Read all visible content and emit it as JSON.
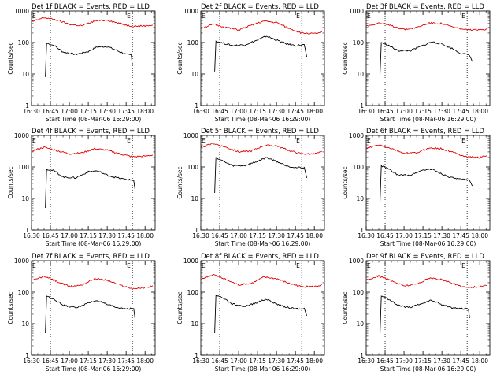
{
  "colors": {
    "events": "#000000",
    "lld": "#e00000",
    "axes": "#000000",
    "background": "#ffffff"
  },
  "xlabel": "Start Time (08-Mar-06 16:29:00)",
  "ylabel": "Counts/sec",
  "x_tick_labels": [
    "16:30",
    "16:45",
    "17:00",
    "17:15",
    "17:30",
    "17:45",
    "18:00"
  ],
  "y_tick_labels": [
    "1",
    "10",
    "100",
    "1000"
  ],
  "marker_label": "E",
  "chart_data": [
    {
      "type": "line",
      "title": "Det 1f BLACK = Events, RED = LLD",
      "xlabel": "Start Time (08-Mar-06 16:29:00)",
      "ylabel": "Counts/sec",
      "yscale": "log",
      "ylim": [
        1,
        1000
      ],
      "x_ticks": [
        "16:30",
        "16:45",
        "17:00",
        "17:15",
        "17:30",
        "17:45",
        "18:00"
      ],
      "vlines": [
        "16:45",
        "17:50"
      ],
      "series": [
        {
          "name": "Events",
          "color": "#000000",
          "x": [
            "16:41",
            "16:42",
            "16:48",
            "16:55",
            "17:05",
            "17:15",
            "17:22",
            "17:30",
            "17:38",
            "17:45",
            "17:49",
            "17:50"
          ],
          "y": [
            8,
            95,
            80,
            50,
            42,
            52,
            72,
            75,
            55,
            42,
            40,
            18
          ]
        },
        {
          "name": "LLD",
          "color": "#e00000",
          "x": [
            "16:30",
            "16:40",
            "16:50",
            "17:00",
            "17:10",
            "17:20",
            "17:30",
            "17:40",
            "17:50",
            "18:00",
            "18:06"
          ],
          "y": [
            450,
            620,
            520,
            380,
            340,
            480,
            520,
            400,
            330,
            340,
            360
          ]
        }
      ]
    },
    {
      "type": "line",
      "title": "Det 2f BLACK = Events, RED = LLD",
      "xlabel": "Start Time (08-Mar-06 16:29:00)",
      "ylabel": "Counts/sec",
      "yscale": "log",
      "ylim": [
        1,
        1000
      ],
      "x_ticks": [
        "16:30",
        "16:45",
        "17:00",
        "17:15",
        "17:30",
        "17:45",
        "18:00"
      ],
      "vlines": [
        "16:45",
        "17:50"
      ],
      "series": [
        {
          "name": "Events",
          "color": "#000000",
          "x": [
            "16:41",
            "16:42",
            "16:48",
            "16:55",
            "17:05",
            "17:15",
            "17:22",
            "17:30",
            "17:38",
            "17:45",
            "17:52",
            "17:54"
          ],
          "y": [
            12,
            110,
            95,
            80,
            85,
            120,
            160,
            120,
            90,
            80,
            85,
            35
          ]
        },
        {
          "name": "LLD",
          "color": "#e00000",
          "x": [
            "16:30",
            "16:40",
            "16:50",
            "17:00",
            "17:10",
            "17:20",
            "17:30",
            "17:40",
            "17:50",
            "18:00",
            "18:06"
          ],
          "y": [
            280,
            380,
            300,
            250,
            350,
            480,
            430,
            280,
            200,
            190,
            210
          ]
        }
      ]
    },
    {
      "type": "line",
      "title": "Det 3f BLACK = Events, RED = LLD",
      "xlabel": "Start Time (08-Mar-06 16:29:00)",
      "ylabel": "Counts/sec",
      "yscale": "log",
      "ylim": [
        1,
        1000
      ],
      "x_ticks": [
        "16:30",
        "16:45",
        "17:00",
        "17:15",
        "17:30",
        "17:45",
        "18:00"
      ],
      "vlines": [
        "16:45",
        "17:50"
      ],
      "series": [
        {
          "name": "Events",
          "color": "#000000",
          "x": [
            "16:41",
            "16:42",
            "16:48",
            "16:55",
            "17:05",
            "17:15",
            "17:22",
            "17:30",
            "17:38",
            "17:45",
            "17:52",
            "17:54"
          ],
          "y": [
            10,
            100,
            80,
            55,
            55,
            80,
            105,
            90,
            65,
            45,
            40,
            25
          ]
        },
        {
          "name": "LLD",
          "color": "#e00000",
          "x": [
            "16:30",
            "16:40",
            "16:50",
            "17:00",
            "17:10",
            "17:20",
            "17:30",
            "17:40",
            "17:50",
            "18:00",
            "18:06"
          ],
          "y": [
            330,
            420,
            340,
            260,
            300,
            420,
            400,
            300,
            250,
            250,
            270
          ]
        }
      ]
    },
    {
      "type": "line",
      "title": "Det 4f BLACK = Events, RED = LLD",
      "xlabel": "Start Time (08-Mar-06 16:29:00)",
      "ylabel": "Counts/sec",
      "yscale": "log",
      "ylim": [
        1,
        1000
      ],
      "x_ticks": [
        "16:30",
        "16:45",
        "17:00",
        "17:15",
        "17:30",
        "17:45",
        "18:00"
      ],
      "vlines": [
        "16:45",
        "17:50"
      ],
      "series": [
        {
          "name": "Events",
          "color": "#000000",
          "x": [
            "16:41",
            "16:42",
            "16:48",
            "16:55",
            "17:05",
            "17:15",
            "17:22",
            "17:30",
            "17:38",
            "17:45",
            "17:51",
            "17:52"
          ],
          "y": [
            5,
            85,
            75,
            48,
            45,
            70,
            75,
            55,
            45,
            40,
            38,
            20
          ]
        },
        {
          "name": "LLD",
          "color": "#e00000",
          "x": [
            "16:30",
            "16:40",
            "16:50",
            "17:00",
            "17:10",
            "17:20",
            "17:30",
            "17:40",
            "17:50",
            "18:00",
            "18:06"
          ],
          "y": [
            320,
            420,
            330,
            260,
            280,
            380,
            340,
            260,
            210,
            220,
            240
          ]
        }
      ]
    },
    {
      "type": "line",
      "title": "Det 5f BLACK = Events, RED = LLD",
      "xlabel": "Start Time (08-Mar-06 16:29:00)",
      "ylabel": "Counts/sec",
      "yscale": "log",
      "ylim": [
        1,
        1000
      ],
      "x_ticks": [
        "16:30",
        "16:45",
        "17:00",
        "17:15",
        "17:30",
        "17:45",
        "18:00"
      ],
      "vlines": [
        "16:45",
        "17:50"
      ],
      "series": [
        {
          "name": "Events",
          "color": "#000000",
          "x": [
            "16:41",
            "16:42",
            "16:48",
            "16:55",
            "17:05",
            "17:15",
            "17:22",
            "17:30",
            "17:38",
            "17:45",
            "17:52",
            "17:54"
          ],
          "y": [
            15,
            200,
            150,
            110,
            110,
            150,
            200,
            150,
            110,
            95,
            95,
            45
          ]
        },
        {
          "name": "LLD",
          "color": "#e00000",
          "x": [
            "16:30",
            "16:40",
            "16:50",
            "17:00",
            "17:10",
            "17:20",
            "17:30",
            "17:40",
            "17:50",
            "18:00",
            "18:06"
          ],
          "y": [
            420,
            560,
            420,
            300,
            320,
            480,
            470,
            330,
            260,
            260,
            300
          ]
        }
      ]
    },
    {
      "type": "line",
      "title": "Det 6f BLACK = Events, RED = LLD",
      "xlabel": "Start Time (08-Mar-06 16:29:00)",
      "ylabel": "Counts/sec",
      "yscale": "log",
      "ylim": [
        1,
        1000
      ],
      "x_ticks": [
        "16:30",
        "16:45",
        "17:00",
        "17:15",
        "17:30",
        "17:45",
        "18:00"
      ],
      "vlines": [
        "16:45",
        "17:50"
      ],
      "series": [
        {
          "name": "Events",
          "color": "#000000",
          "x": [
            "16:41",
            "16:42",
            "16:48",
            "16:55",
            "17:05",
            "17:15",
            "17:22",
            "17:30",
            "17:38",
            "17:45",
            "17:52",
            "17:54"
          ],
          "y": [
            8,
            110,
            85,
            55,
            55,
            80,
            85,
            60,
            45,
            40,
            38,
            25
          ]
        },
        {
          "name": "LLD",
          "color": "#e00000",
          "x": [
            "16:30",
            "16:40",
            "16:50",
            "17:00",
            "17:10",
            "17:20",
            "17:30",
            "17:40",
            "17:50",
            "18:00",
            "18:06"
          ],
          "y": [
            380,
            500,
            380,
            270,
            280,
            400,
            380,
            280,
            210,
            200,
            230
          ]
        }
      ]
    },
    {
      "type": "line",
      "title": "Det 7f BLACK = Events, RED = LLD",
      "xlabel": "Start Time (08-Mar-06 16:29:00)",
      "ylabel": "Counts/sec",
      "yscale": "log",
      "ylim": [
        1,
        1000
      ],
      "x_ticks": [
        "16:30",
        "16:45",
        "17:00",
        "17:15",
        "17:30",
        "17:45",
        "18:00"
      ],
      "vlines": [
        "16:45",
        "17:50"
      ],
      "series": [
        {
          "name": "Events",
          "color": "#000000",
          "x": [
            "16:41",
            "16:42",
            "16:48",
            "16:55",
            "17:05",
            "17:15",
            "17:22",
            "17:30",
            "17:38",
            "17:45",
            "17:51",
            "17:52"
          ],
          "y": [
            5,
            75,
            60,
            38,
            32,
            45,
            55,
            40,
            32,
            30,
            30,
            15
          ]
        },
        {
          "name": "LLD",
          "color": "#e00000",
          "x": [
            "16:30",
            "16:40",
            "16:50",
            "17:00",
            "17:10",
            "17:20",
            "17:30",
            "17:40",
            "17:50",
            "18:00",
            "18:06"
          ],
          "y": [
            230,
            320,
            220,
            150,
            170,
            270,
            240,
            170,
            130,
            140,
            160
          ]
        }
      ]
    },
    {
      "type": "line",
      "title": "Det 8f BLACK = Events, RED = LLD",
      "xlabel": "Start Time (08-Mar-06 16:29:00)",
      "ylabel": "Counts/sec",
      "yscale": "log",
      "ylim": [
        1,
        1000
      ],
      "x_ticks": [
        "16:30",
        "16:45",
        "17:00",
        "17:15",
        "17:30",
        "17:45",
        "18:00"
      ],
      "vlines": [
        "16:45",
        "17:50"
      ],
      "series": [
        {
          "name": "Events",
          "color": "#000000",
          "x": [
            "16:41",
            "16:42",
            "16:48",
            "16:55",
            "17:05",
            "17:15",
            "17:22",
            "17:30",
            "17:38",
            "17:45",
            "17:52",
            "17:54"
          ],
          "y": [
            5,
            80,
            65,
            42,
            35,
            48,
            60,
            42,
            33,
            30,
            30,
            18
          ]
        },
        {
          "name": "LLD",
          "color": "#e00000",
          "x": [
            "16:30",
            "16:40",
            "16:50",
            "17:00",
            "17:10",
            "17:20",
            "17:30",
            "17:40",
            "17:50",
            "18:00",
            "18:06"
          ],
          "y": [
            260,
            360,
            250,
            170,
            190,
            300,
            270,
            190,
            150,
            150,
            170
          ]
        }
      ]
    },
    {
      "type": "line",
      "title": "Det 9f BLACK = Events, RED = LLD",
      "xlabel": "Start Time (08-Mar-06 16:29:00)",
      "ylabel": "Counts/sec",
      "yscale": "log",
      "ylim": [
        1,
        1000
      ],
      "x_ticks": [
        "16:30",
        "16:45",
        "17:00",
        "17:15",
        "17:30",
        "17:45",
        "18:00"
      ],
      "vlines": [
        "16:45",
        "17:50"
      ],
      "series": [
        {
          "name": "Events",
          "color": "#000000",
          "x": [
            "16:41",
            "16:42",
            "16:48",
            "16:55",
            "17:05",
            "17:15",
            "17:22",
            "17:30",
            "17:38",
            "17:45",
            "17:51",
            "17:52"
          ],
          "y": [
            5,
            75,
            60,
            38,
            32,
            45,
            55,
            40,
            32,
            30,
            30,
            15
          ]
        },
        {
          "name": "LLD",
          "color": "#e00000",
          "x": [
            "16:30",
            "16:40",
            "16:50",
            "17:00",
            "17:10",
            "17:20",
            "17:30",
            "17:40",
            "17:50",
            "18:00",
            "18:06"
          ],
          "y": [
            240,
            330,
            230,
            160,
            180,
            280,
            250,
            180,
            140,
            150,
            170
          ]
        }
      ]
    }
  ]
}
